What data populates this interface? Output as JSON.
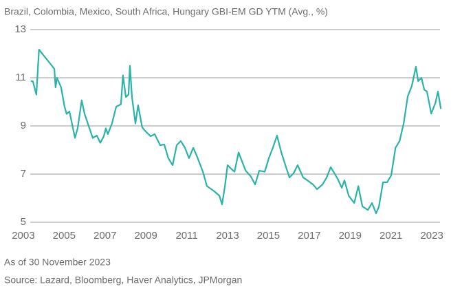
{
  "chart_data": {
    "type": "line",
    "title": "Brazil, Colombia, Mexico, South Africa, Hungary GBI-EM GD YTM (Avg., %)",
    "notes": [
      "As of 30 November 2023",
      "Source: Lazard, Bloomberg, Haver Analytics, JPMorgan"
    ],
    "x": [
      2003.37,
      2003.47,
      2003.64,
      2003.77,
      2003.98,
      2004.25,
      2004.52,
      2004.58,
      2004.65,
      2004.85,
      2005.02,
      2005.12,
      2005.26,
      2005.53,
      2005.66,
      2005.86,
      2006.0,
      2006.2,
      2006.4,
      2006.6,
      2006.77,
      2006.94,
      2007.04,
      2007.14,
      2007.34,
      2007.55,
      2007.78,
      2007.88,
      2008.02,
      2008.15,
      2008.22,
      2008.32,
      2008.49,
      2008.62,
      2008.82,
      2008.96,
      2009.23,
      2009.43,
      2009.7,
      2009.9,
      2010.1,
      2010.31,
      2010.51,
      2010.71,
      2010.91,
      2011.11,
      2011.32,
      2011.52,
      2011.79,
      2011.99,
      2012.33,
      2012.6,
      2012.73,
      2012.87,
      2013.0,
      2013.2,
      2013.34,
      2013.54,
      2013.88,
      2014.14,
      2014.35,
      2014.55,
      2014.82,
      2015.02,
      2015.22,
      2015.42,
      2015.63,
      2015.83,
      2016.03,
      2016.23,
      2016.43,
      2016.7,
      2016.91,
      2017.18,
      2017.38,
      2017.65,
      2017.85,
      2018.05,
      2018.39,
      2018.59,
      2018.72,
      2018.93,
      2019.2,
      2019.4,
      2019.6,
      2019.87,
      2020.07,
      2020.27,
      2020.41,
      2020.61,
      2020.81,
      2021.01,
      2021.22,
      2021.42,
      2021.62,
      2021.82,
      2022.02,
      2022.22,
      2022.33,
      2022.49,
      2022.63,
      2022.76,
      2022.97,
      2023.17,
      2023.3,
      2023.44
    ],
    "series": [
      {
        "name": "GBI-EM GD YTM",
        "color": "#2ab3a6",
        "values": [
          10.86,
          10.85,
          10.3,
          12.17,
          11.94,
          11.66,
          11.37,
          10.6,
          11.0,
          10.6,
          9.8,
          9.5,
          9.6,
          8.5,
          8.9,
          10.06,
          9.5,
          9.0,
          8.5,
          8.6,
          8.3,
          8.57,
          8.9,
          8.66,
          9.1,
          9.8,
          9.9,
          11.1,
          10.2,
          10.3,
          11.5,
          10.2,
          9.1,
          9.86,
          8.94,
          8.8,
          8.57,
          8.66,
          8.2,
          8.23,
          7.66,
          7.37,
          8.2,
          8.37,
          8.1,
          7.66,
          8.09,
          7.7,
          7.1,
          6.5,
          6.3,
          6.1,
          5.74,
          6.5,
          7.37,
          7.2,
          7.1,
          7.9,
          7.15,
          6.9,
          6.57,
          7.14,
          7.1,
          7.66,
          8.1,
          8.6,
          7.9,
          7.37,
          6.86,
          7.03,
          7.37,
          6.86,
          6.74,
          6.57,
          6.37,
          6.57,
          6.86,
          7.29,
          6.8,
          6.43,
          6.74,
          6.1,
          5.8,
          6.5,
          5.66,
          5.51,
          5.8,
          5.37,
          5.66,
          6.66,
          6.66,
          6.94,
          8.09,
          8.37,
          9.1,
          10.23,
          10.66,
          11.46,
          10.86,
          11.0,
          10.5,
          10.43,
          9.51,
          9.94,
          10.43,
          9.71
        ]
      }
    ],
    "xlim": [
      2002.6,
      2023.5
    ],
    "xticks": [
      2003,
      2005,
      2007,
      2009,
      2011,
      2013,
      2015,
      2017,
      2019,
      2021,
      2023
    ],
    "ylim": [
      5,
      13
    ],
    "yticks": [
      5,
      7,
      9,
      11,
      13
    ],
    "grid": true
  }
}
